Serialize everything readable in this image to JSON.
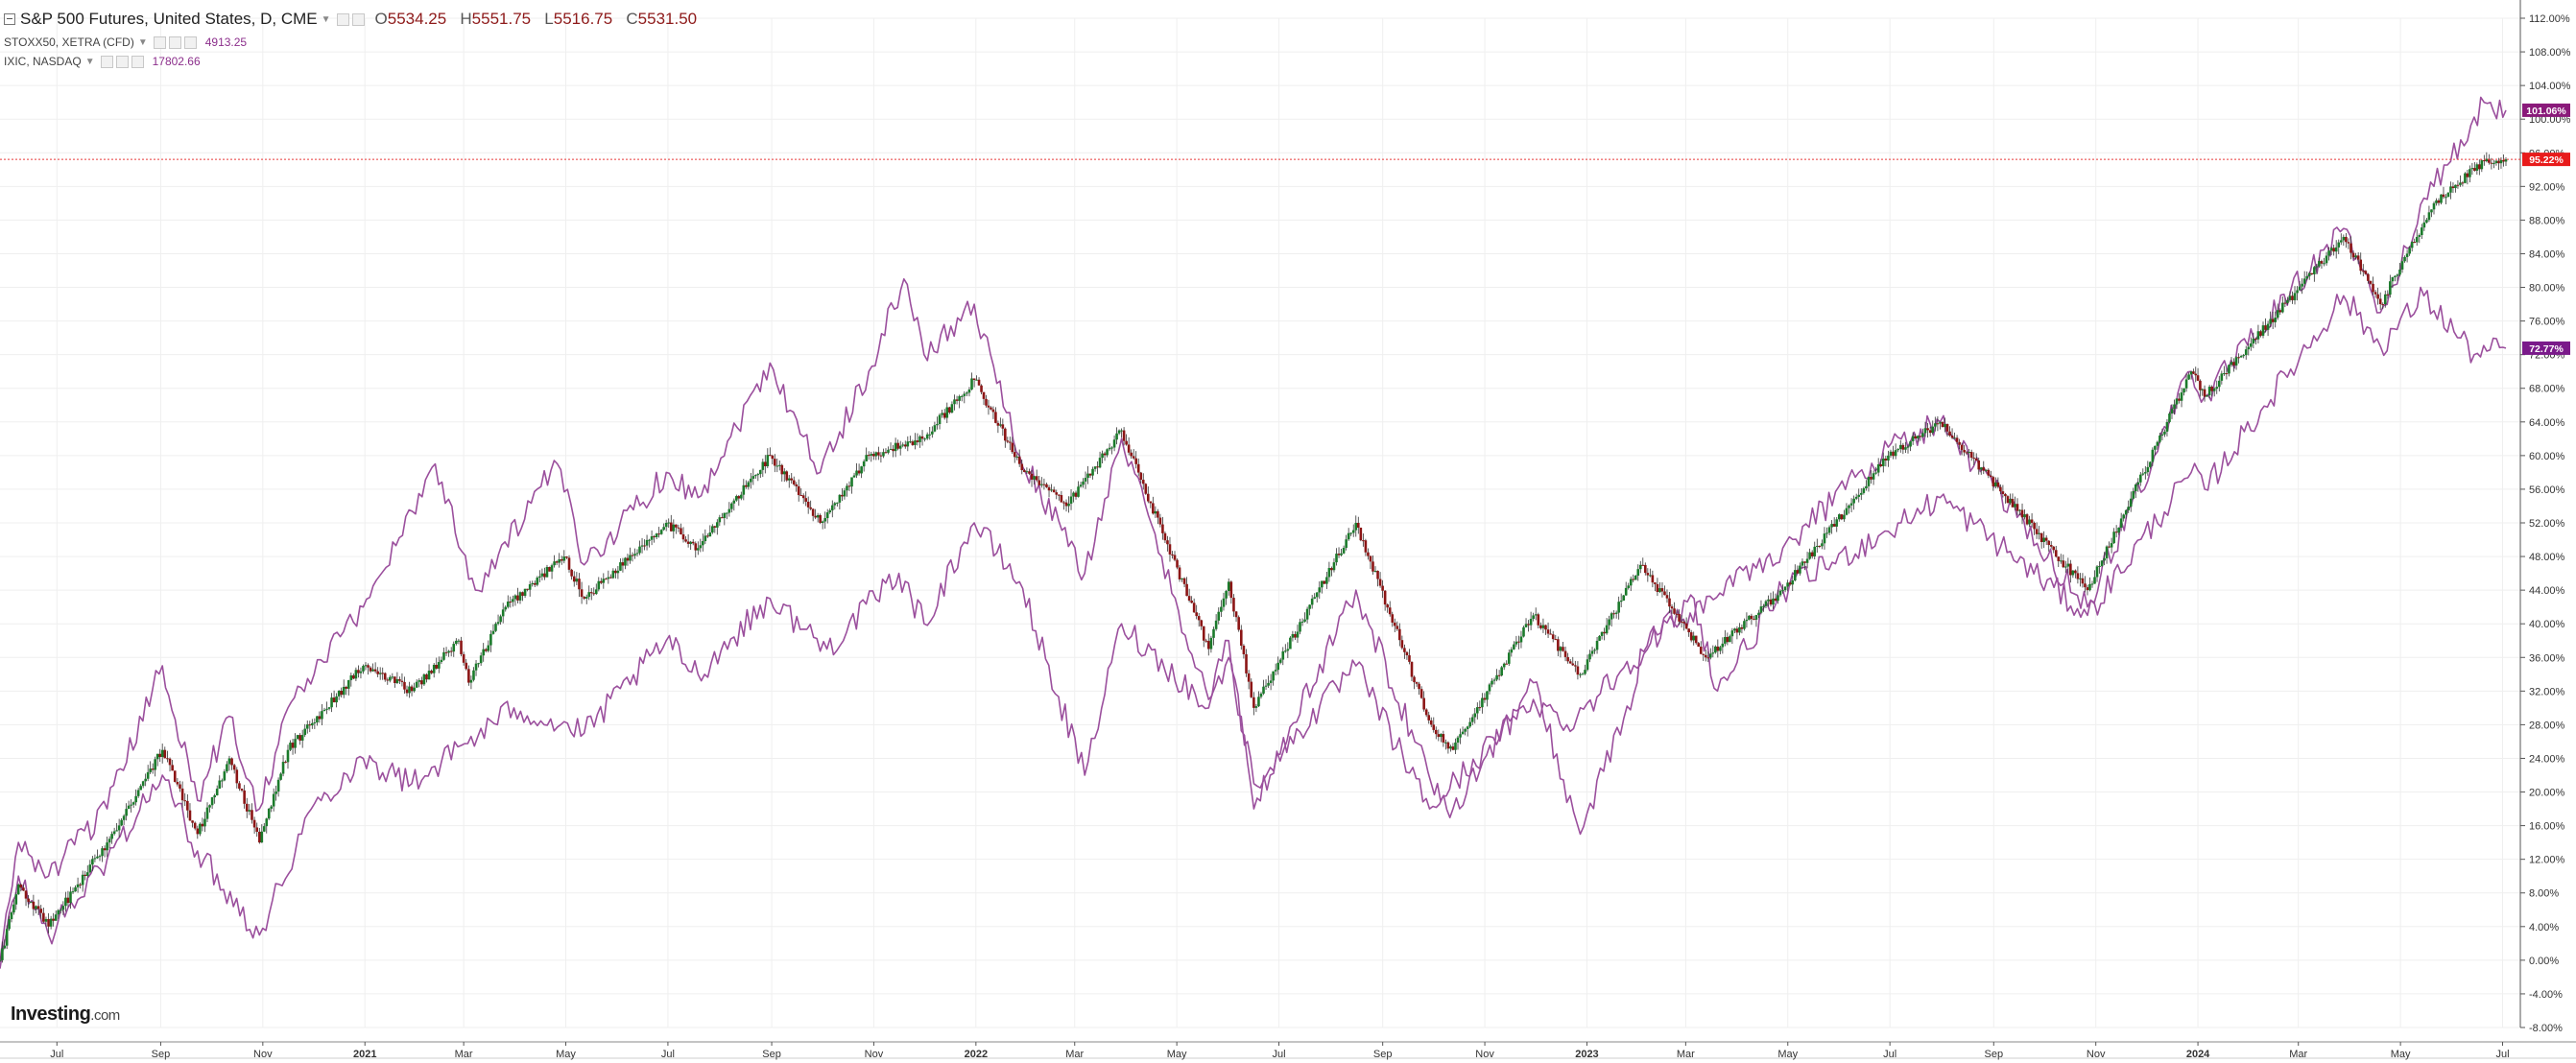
{
  "header": {
    "main_title": "S&P 500 Futures, United States, D, CME",
    "ohlc": {
      "open_label": "O",
      "open": "5534.25",
      "high_label": "H",
      "high": "5551.75",
      "low_label": "L",
      "low": "5516.75",
      "close_label": "C",
      "close": "5531.50"
    },
    "compare": [
      {
        "name": "STOXX50, XETRA (CFD)",
        "value": "4913.25"
      },
      {
        "name": "IXIC, NASDAQ",
        "value": "17802.66"
      }
    ]
  },
  "logo": {
    "brand": "Investing",
    "suffix": ".com"
  },
  "colors": {
    "up": "#1b7a2b",
    "down": "#8b1515",
    "compare": "#9b4f9d",
    "grid": "#efefef",
    "axis": "#555555",
    "hline": "#e83a3a",
    "badge_red": "#e81b1b",
    "badge_purple": "#8a1a7a",
    "badge_purple2": "#7a1a8a"
  },
  "chart_data": {
    "type": "line",
    "y_axis": {
      "min": -8,
      "max": 112,
      "unit": "%",
      "ticks": [
        "112.00%",
        "108.00%",
        "104.00%",
        "100.00%",
        "96.00%",
        "92.00%",
        "88.00%",
        "84.00%",
        "80.00%",
        "76.00%",
        "72.00%",
        "68.00%",
        "64.00%",
        "60.00%",
        "56.00%",
        "52.00%",
        "48.00%",
        "44.00%",
        "40.00%",
        "36.00%",
        "32.00%",
        "28.00%",
        "24.00%",
        "20.00%",
        "16.00%",
        "12.00%",
        "8.00%",
        "4.00%",
        "0.00%",
        "-4.00%",
        "-8.00%"
      ]
    },
    "x_axis": {
      "labels": [
        "Jul",
        "Sep",
        "Nov",
        "2021",
        "Mar",
        "May",
        "Jul",
        "Sep",
        "Nov",
        "2022",
        "Mar",
        "May",
        "Jul",
        "Sep",
        "Nov",
        "2023",
        "Mar",
        "May",
        "Jul",
        "Sep",
        "Nov",
        "2024",
        "Mar",
        "May",
        "Jul"
      ],
      "bold_labels": [
        "2021",
        "2022",
        "2023",
        "2024"
      ]
    },
    "price_lines": [
      {
        "value": 95.22,
        "label": "95.22%"
      }
    ],
    "series": [
      {
        "name": "S&P 500 Futures, United States, D, CME",
        "style": "candlestick",
        "last_label": "95.22%",
        "points": [
          [
            "2020-05-28",
            0
          ],
          [
            "2020-06-08",
            9
          ],
          [
            "2020-06-26",
            4
          ],
          [
            "2020-07-31",
            14
          ],
          [
            "2020-09-02",
            25
          ],
          [
            "2020-09-23",
            15
          ],
          [
            "2020-10-12",
            24
          ],
          [
            "2020-10-30",
            14
          ],
          [
            "2020-11-16",
            25
          ],
          [
            "2020-12-31",
            35
          ],
          [
            "2021-01-29",
            32
          ],
          [
            "2021-02-26",
            38
          ],
          [
            "2021-03-04",
            33
          ],
          [
            "2021-03-26",
            42
          ],
          [
            "2021-04-30",
            48
          ],
          [
            "2021-05-12",
            43
          ],
          [
            "2021-06-30",
            52
          ],
          [
            "2021-07-19",
            49
          ],
          [
            "2021-08-31",
            60
          ],
          [
            "2021-09-30",
            52
          ],
          [
            "2021-10-29",
            60
          ],
          [
            "2021-11-30",
            62
          ],
          [
            "2021-12-31",
            69
          ],
          [
            "2022-01-27",
            59
          ],
          [
            "2022-02-24",
            54
          ],
          [
            "2022-03-29",
            63
          ],
          [
            "2022-05-20",
            37
          ],
          [
            "2022-06-01",
            45
          ],
          [
            "2022-06-16",
            30
          ],
          [
            "2022-08-16",
            52
          ],
          [
            "2022-09-30",
            28
          ],
          [
            "2022-10-13",
            25
          ],
          [
            "2022-11-30",
            41
          ],
          [
            "2022-12-28",
            34
          ],
          [
            "2023-02-02",
            47
          ],
          [
            "2023-03-13",
            36
          ],
          [
            "2023-04-28",
            44
          ],
          [
            "2023-06-30",
            60
          ],
          [
            "2023-07-31",
            64
          ],
          [
            "2023-10-27",
            44
          ],
          [
            "2023-12-28",
            70
          ],
          [
            "2024-01-05",
            67
          ],
          [
            "2024-03-28",
            86
          ],
          [
            "2024-04-19",
            78
          ],
          [
            "2024-05-21",
            90
          ],
          [
            "2024-06-20",
            95
          ],
          [
            "2024-07-03",
            95.22
          ]
        ]
      },
      {
        "name": "STOXX50, XETRA (CFD)",
        "style": "line",
        "last_label": "72.77%",
        "points": [
          [
            "2020-05-28",
            -1
          ],
          [
            "2020-06-08",
            10
          ],
          [
            "2020-06-26",
            3
          ],
          [
            "2020-07-31",
            12
          ],
          [
            "2020-09-02",
            22
          ],
          [
            "2020-09-23",
            13
          ],
          [
            "2020-10-30",
            3
          ],
          [
            "2020-11-30",
            18
          ],
          [
            "2020-12-31",
            24
          ],
          [
            "2021-01-29",
            21
          ],
          [
            "2021-03-31",
            30
          ],
          [
            "2021-05-12",
            27
          ],
          [
            "2021-06-30",
            38
          ],
          [
            "2021-07-19",
            34
          ],
          [
            "2021-08-31",
            43
          ],
          [
            "2021-10-04",
            37
          ],
          [
            "2021-11-16",
            46
          ],
          [
            "2021-12-01",
            40
          ],
          [
            "2021-12-31",
            52
          ],
          [
            "2022-01-27",
            45
          ],
          [
            "2022-03-07",
            22
          ],
          [
            "2022-03-29",
            40
          ],
          [
            "2022-05-20",
            30
          ],
          [
            "2022-06-01",
            36
          ],
          [
            "2022-06-16",
            21
          ],
          [
            "2022-08-16",
            35
          ],
          [
            "2022-09-29",
            18
          ],
          [
            "2022-11-30",
            31
          ],
          [
            "2022-12-20",
            28
          ],
          [
            "2023-03-06",
            43
          ],
          [
            "2023-03-20",
            32
          ],
          [
            "2023-04-28",
            44
          ],
          [
            "2023-06-30",
            51
          ],
          [
            "2023-07-31",
            55
          ],
          [
            "2023-10-27",
            41
          ],
          [
            "2023-12-28",
            58
          ],
          [
            "2024-01-05",
            56
          ],
          [
            "2024-03-28",
            79
          ],
          [
            "2024-04-19",
            73
          ],
          [
            "2024-05-15",
            79
          ],
          [
            "2024-06-14",
            72
          ],
          [
            "2024-07-03",
            72.77
          ]
        ]
      },
      {
        "name": "IXIC, NASDAQ",
        "style": "line",
        "last_label": "101.06%",
        "points": [
          [
            "2020-05-28",
            0
          ],
          [
            "2020-06-08",
            14
          ],
          [
            "2020-06-26",
            10
          ],
          [
            "2020-07-31",
            18
          ],
          [
            "2020-09-02",
            35
          ],
          [
            "2020-09-23",
            19
          ],
          [
            "2020-10-12",
            29
          ],
          [
            "2020-10-30",
            18
          ],
          [
            "2020-11-16",
            30
          ],
          [
            "2020-12-31",
            42
          ],
          [
            "2021-02-12",
            59
          ],
          [
            "2021-03-08",
            44
          ],
          [
            "2021-04-26",
            59
          ],
          [
            "2021-05-12",
            47
          ],
          [
            "2021-06-30",
            58
          ],
          [
            "2021-07-19",
            55
          ],
          [
            "2021-08-31",
            71
          ],
          [
            "2021-09-30",
            58
          ],
          [
            "2021-10-29",
            70
          ],
          [
            "2021-11-19",
            81
          ],
          [
            "2021-12-01",
            72
          ],
          [
            "2021-12-31",
            78
          ],
          [
            "2022-01-27",
            60
          ],
          [
            "2022-03-07",
            46
          ],
          [
            "2022-03-29",
            62
          ],
          [
            "2022-05-20",
            31
          ],
          [
            "2022-06-01",
            38
          ],
          [
            "2022-06-16",
            18
          ],
          [
            "2022-08-16",
            44
          ],
          [
            "2022-09-30",
            21
          ],
          [
            "2022-10-13",
            18
          ],
          [
            "2022-11-30",
            33
          ],
          [
            "2022-12-28",
            15
          ],
          [
            "2023-01-31",
            33
          ],
          [
            "2023-02-02",
            37
          ],
          [
            "2023-04-28",
            49
          ],
          [
            "2023-06-30",
            61
          ],
          [
            "2023-07-31",
            64
          ],
          [
            "2023-10-27",
            42
          ],
          [
            "2023-12-28",
            70
          ],
          [
            "2024-01-05",
            67
          ],
          [
            "2024-03-28",
            87
          ],
          [
            "2024-04-19",
            77
          ],
          [
            "2024-05-21",
            92
          ],
          [
            "2024-06-20",
            102
          ],
          [
            "2024-07-03",
            101.06
          ]
        ]
      }
    ]
  }
}
